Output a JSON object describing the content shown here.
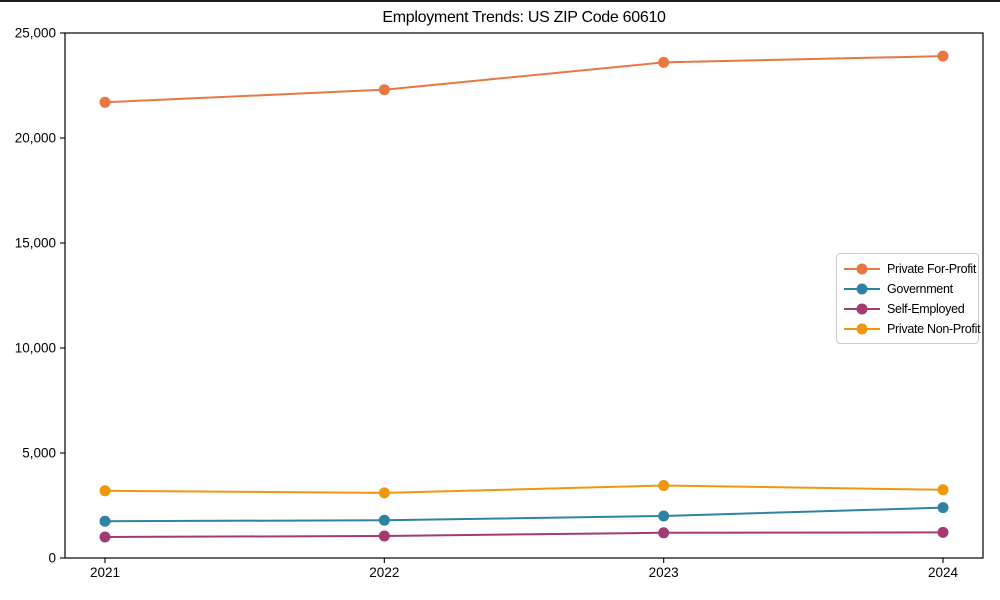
{
  "chart_data": {
    "type": "line",
    "title": "Employment Trends: US ZIP Code 60610",
    "x": [
      "2021",
      "2022",
      "2023",
      "2024"
    ],
    "xlabel": "",
    "ylabel": "",
    "ylim": [
      0,
      25000
    ],
    "yticks": [
      0,
      5000,
      10000,
      15000,
      20000,
      25000
    ],
    "ytick_labels": [
      "0",
      "5,000",
      "10,000",
      "15,000",
      "20,000",
      "25,000"
    ],
    "grid": false,
    "legend_position": "center right",
    "marker": "circle",
    "series": [
      {
        "name": "Private For-Profit",
        "color": "#e87744",
        "values": [
          21700,
          22300,
          23600,
          23900
        ]
      },
      {
        "name": "Government",
        "color": "#2d83a2",
        "values": [
          1750,
          1800,
          2000,
          2400
        ]
      },
      {
        "name": "Self-Employed",
        "color": "#a33a72",
        "values": [
          1000,
          1050,
          1200,
          1220
        ]
      },
      {
        "name": "Private Non-Profit",
        "color": "#f0970c",
        "values": [
          3200,
          3100,
          3450,
          3250
        ]
      }
    ]
  }
}
